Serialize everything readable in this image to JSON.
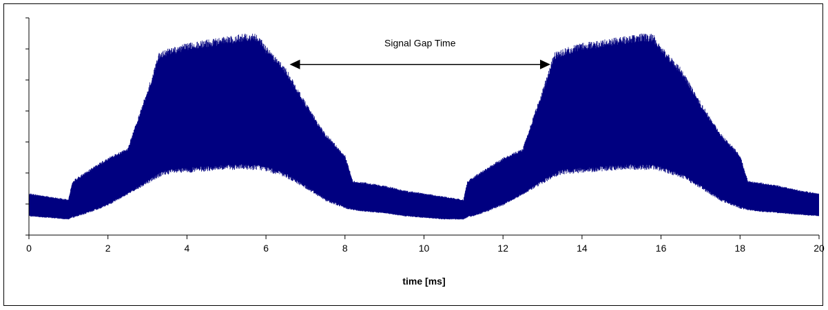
{
  "chart_data": {
    "type": "area",
    "title": "",
    "xlabel": "time [ms]",
    "ylabel": "",
    "xlim": [
      0,
      20
    ],
    "ylim": [
      -1,
      6
    ],
    "x_ticks": [
      0,
      2,
      4,
      6,
      8,
      10,
      12,
      14,
      16,
      18,
      20
    ],
    "y_tick_count": 8,
    "y_tick_labels_shown": false,
    "grid": false,
    "legend": "none",
    "series_color": "#000080",
    "series": [
      {
        "name": "",
        "x": [
          0,
          0.5,
          1.0,
          1.1,
          1.5,
          2.0,
          2.5,
          3.0,
          3.3,
          3.5,
          4.0,
          4.5,
          5.0,
          5.5,
          5.8,
          6.0,
          6.5,
          7.0,
          7.5,
          8.0,
          8.2,
          8.5,
          9.0,
          9.5,
          10.0,
          10.5,
          11.0,
          11.1,
          11.5,
          12.0,
          12.5,
          13.0,
          13.3,
          13.5,
          14.0,
          14.5,
          15.0,
          15.5,
          15.8,
          16.0,
          16.5,
          17.0,
          17.5,
          18.0,
          18.2,
          18.5,
          19.0,
          19.5,
          20.0
        ],
        "upper": [
          0.35,
          0.25,
          0.15,
          0.75,
          1.1,
          1.5,
          1.8,
          3.7,
          4.9,
          5.0,
          5.2,
          5.3,
          5.4,
          5.5,
          5.5,
          5.1,
          4.4,
          3.3,
          2.3,
          1.6,
          0.75,
          0.7,
          0.6,
          0.45,
          0.35,
          0.25,
          0.15,
          0.75,
          1.1,
          1.5,
          1.8,
          3.7,
          4.9,
          5.0,
          5.2,
          5.3,
          5.4,
          5.5,
          5.5,
          5.1,
          4.4,
          3.3,
          2.3,
          1.6,
          0.75,
          0.7,
          0.6,
          0.45,
          0.35
        ],
        "lower": [
          -0.4,
          -0.45,
          -0.5,
          -0.45,
          -0.3,
          -0.05,
          0.3,
          0.65,
          0.85,
          0.95,
          1.0,
          1.05,
          1.1,
          1.1,
          1.1,
          1.05,
          0.85,
          0.5,
          0.1,
          -0.15,
          -0.2,
          -0.25,
          -0.3,
          -0.4,
          -0.45,
          -0.5,
          -0.5,
          -0.45,
          -0.3,
          -0.05,
          0.3,
          0.65,
          0.85,
          0.95,
          1.0,
          1.05,
          1.1,
          1.1,
          1.1,
          1.05,
          0.85,
          0.5,
          0.1,
          -0.15,
          -0.2,
          -0.25,
          -0.3,
          -0.35,
          -0.4
        ]
      }
    ],
    "annotation": {
      "text": "Signal Gap Time",
      "x_start": 6.6,
      "x_end": 13.2,
      "y": 4.5,
      "style": "double-headed-arrow"
    }
  }
}
